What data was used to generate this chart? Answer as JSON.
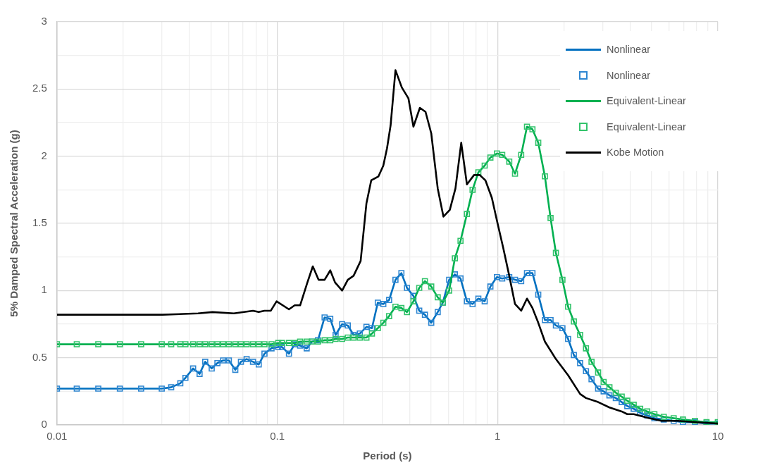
{
  "chart_data": {
    "type": "line",
    "xlabel": "Period (s)",
    "ylabel": "5% Damped Spectral Acceleration (g)",
    "log": "x",
    "grid": true,
    "legend": "top right",
    "x": [
      0.01,
      0.0123,
      0.0154,
      0.0193,
      0.0241,
      0.0299,
      0.033,
      0.0363,
      0.0383,
      0.0415,
      0.0444,
      0.0471,
      0.0504,
      0.0535,
      0.0568,
      0.0603,
      0.0645,
      0.0684,
      0.0726,
      0.0776,
      0.0824,
      0.0875,
      0.0942,
      0.101,
      0.105,
      0.113,
      0.12,
      0.127,
      0.136,
      0.144,
      0.153,
      0.164,
      0.174,
      0.184,
      0.197,
      0.209,
      0.222,
      0.237,
      0.254,
      0.269,
      0.286,
      0.303,
      0.322,
      0.344,
      0.366,
      0.388,
      0.415,
      0.441,
      0.468,
      0.5,
      0.535,
      0.564,
      0.603,
      0.64,
      0.679,
      0.726,
      0.77,
      0.818,
      0.874,
      0.928,
      0.993,
      1.05,
      1.13,
      1.2,
      1.28,
      1.36,
      1.44,
      1.53,
      1.64,
      1.74,
      1.84,
      1.97,
      2.09,
      2.22,
      2.37,
      2.52,
      2.67,
      2.86,
      3.03,
      3.22,
      3.44,
      3.66,
      3.88,
      4.15,
      4.44,
      4.78,
      5.15,
      5.68,
      6.3,
      6.94,
      7.87,
      8.88,
      10
    ],
    "xlim": [
      0.01,
      10
    ],
    "xticks": [
      0.01,
      {
        "value": 0.02,
        "label": null
      },
      {
        "value": 0.03,
        "label": null
      },
      {
        "value": 0.04,
        "label": null
      },
      {
        "value": 0.05,
        "label": null
      },
      {
        "value": 0.06,
        "label": null
      },
      {
        "value": 0.07,
        "label": null
      },
      {
        "value": 0.08,
        "label": null
      },
      {
        "value": 0.09,
        "label": null
      },
      0.1,
      {
        "value": 0.2,
        "label": null
      },
      {
        "value": 0.3,
        "label": null
      },
      {
        "value": 0.4,
        "label": null
      },
      {
        "value": 0.5,
        "label": null
      },
      {
        "value": 0.6,
        "label": null
      },
      {
        "value": 0.7,
        "label": null
      },
      {
        "value": 0.8,
        "label": null
      },
      {
        "value": 0.9,
        "label": null
      },
      1,
      {
        "value": 2,
        "label": null
      },
      {
        "value": 3,
        "label": null
      },
      {
        "value": 4,
        "label": null
      },
      {
        "value": 5,
        "label": null
      },
      {
        "value": 6,
        "label": null
      },
      {
        "value": 7,
        "label": null
      },
      {
        "value": 8,
        "label": null
      },
      {
        "value": 9,
        "label": null
      },
      10
    ],
    "ylim": [
      0,
      3
    ],
    "yticks": [
      0,
      {
        "value": 0.25,
        "label": null
      },
      0.5,
      {
        "value": 0.75,
        "label": null
      },
      1,
      {
        "value": 1.25,
        "label": null
      },
      1.5,
      {
        "value": 1.75,
        "label": null
      },
      2,
      {
        "value": 2.25,
        "label": null
      },
      2.5,
      {
        "value": 2.75,
        "label": null
      },
      3
    ],
    "series": [
      {
        "name": "Nonlinear",
        "type": "line",
        "marker": "none",
        "color": "#0070c0",
        "values": [
          0.27,
          0.27,
          0.27,
          0.27,
          0.27,
          0.27,
          0.28,
          0.31,
          0.35,
          0.42,
          0.38,
          0.47,
          0.42,
          0.46,
          0.48,
          0.48,
          0.41,
          0.47,
          0.49,
          0.47,
          0.45,
          0.53,
          0.57,
          0.58,
          0.58,
          0.53,
          0.6,
          0.59,
          0.57,
          0.62,
          0.63,
          0.8,
          0.79,
          0.67,
          0.75,
          0.74,
          0.67,
          0.68,
          0.73,
          0.72,
          0.91,
          0.9,
          0.93,
          1.08,
          1.13,
          1.02,
          0.96,
          0.85,
          0.82,
          0.76,
          0.84,
          0.91,
          1.08,
          1.12,
          1.09,
          0.92,
          0.9,
          0.94,
          0.92,
          1.03,
          1.1,
          1.09,
          1.1,
          1.08,
          1.07,
          1.13,
          1.13,
          0.97,
          0.78,
          0.78,
          0.74,
          0.72,
          0.64,
          0.52,
          0.46,
          0.4,
          0.34,
          0.27,
          0.25,
          0.22,
          0.2,
          0.17,
          0.14,
          0.12,
          0.09,
          0.07,
          0.05,
          0.04,
          0.03,
          0.02,
          0.02,
          0.01,
          0.01
        ]
      },
      {
        "name": "Nonlinear",
        "type": "scatter",
        "marker": "square",
        "color": "#2e86d1",
        "values": [
          0.27,
          0.27,
          0.27,
          0.27,
          0.27,
          0.27,
          0.28,
          0.31,
          0.35,
          0.42,
          0.38,
          0.47,
          0.42,
          0.46,
          0.48,
          0.48,
          0.41,
          0.47,
          0.49,
          0.47,
          0.45,
          0.53,
          0.57,
          0.58,
          0.58,
          0.53,
          0.6,
          0.59,
          0.57,
          0.62,
          0.63,
          0.8,
          0.79,
          0.67,
          0.75,
          0.74,
          0.67,
          0.68,
          0.73,
          0.72,
          0.91,
          0.9,
          0.93,
          1.08,
          1.13,
          1.02,
          0.96,
          0.85,
          0.82,
          0.76,
          0.84,
          0.91,
          1.08,
          1.12,
          1.09,
          0.92,
          0.9,
          0.94,
          0.92,
          1.03,
          1.1,
          1.09,
          1.1,
          1.08,
          1.07,
          1.13,
          1.13,
          0.97,
          0.78,
          0.78,
          0.74,
          0.72,
          0.64,
          0.52,
          0.46,
          0.4,
          0.34,
          0.27,
          0.25,
          0.22,
          0.2,
          0.17,
          0.14,
          0.12,
          0.09,
          0.07,
          0.05,
          0.04,
          0.03,
          0.02,
          0.02,
          0.01,
          0.01
        ]
      },
      {
        "name": "Equivalent-Linear",
        "type": "line",
        "marker": "none",
        "color": "#00b050",
        "values": [
          0.6,
          0.6,
          0.6,
          0.6,
          0.6,
          0.6,
          0.6,
          0.6,
          0.6,
          0.6,
          0.6,
          0.6,
          0.6,
          0.6,
          0.6,
          0.6,
          0.6,
          0.6,
          0.6,
          0.6,
          0.6,
          0.6,
          0.6,
          0.61,
          0.61,
          0.61,
          0.61,
          0.62,
          0.62,
          0.62,
          0.62,
          0.63,
          0.63,
          0.64,
          0.64,
          0.65,
          0.65,
          0.65,
          0.65,
          0.68,
          0.72,
          0.76,
          0.81,
          0.88,
          0.87,
          0.84,
          0.92,
          1.02,
          1.07,
          1.03,
          0.95,
          0.91,
          1.0,
          1.24,
          1.37,
          1.57,
          1.75,
          1.88,
          1.93,
          1.99,
          2.02,
          2.01,
          1.96,
          1.87,
          2.01,
          2.22,
          2.2,
          2.1,
          1.85,
          1.54,
          1.28,
          1.08,
          0.88,
          0.77,
          0.67,
          0.57,
          0.47,
          0.39,
          0.32,
          0.28,
          0.24,
          0.21,
          0.18,
          0.15,
          0.12,
          0.1,
          0.08,
          0.06,
          0.05,
          0.04,
          0.03,
          0.02,
          0.02
        ]
      },
      {
        "name": "Equivalent-Linear",
        "type": "scatter",
        "marker": "square",
        "color": "#33c36b",
        "values": [
          0.6,
          0.6,
          0.6,
          0.6,
          0.6,
          0.6,
          0.6,
          0.6,
          0.6,
          0.6,
          0.6,
          0.6,
          0.6,
          0.6,
          0.6,
          0.6,
          0.6,
          0.6,
          0.6,
          0.6,
          0.6,
          0.6,
          0.6,
          0.61,
          0.61,
          0.61,
          0.61,
          0.62,
          0.62,
          0.62,
          0.62,
          0.63,
          0.63,
          0.64,
          0.64,
          0.65,
          0.65,
          0.65,
          0.65,
          0.68,
          0.72,
          0.76,
          0.81,
          0.88,
          0.87,
          0.84,
          0.92,
          1.02,
          1.07,
          1.03,
          0.95,
          0.91,
          1.0,
          1.24,
          1.37,
          1.57,
          1.75,
          1.88,
          1.93,
          1.99,
          2.02,
          2.01,
          1.96,
          1.87,
          2.01,
          2.22,
          2.2,
          2.1,
          1.85,
          1.54,
          1.28,
          1.08,
          0.88,
          0.77,
          0.67,
          0.57,
          0.47,
          0.39,
          0.32,
          0.28,
          0.24,
          0.21,
          0.18,
          0.15,
          0.12,
          0.1,
          0.08,
          0.06,
          0.05,
          0.04,
          0.03,
          0.02,
          0.02
        ]
      },
      {
        "name": "Kobe Motion",
        "type": "line",
        "marker": "none",
        "color": "#000000",
        "x": [
          0.01,
          0.0301,
          0.0437,
          0.0508,
          0.0635,
          0.0776,
          0.0824,
          0.0875,
          0.0935,
          0.0993,
          0.113,
          0.12,
          0.127,
          0.137,
          0.145,
          0.154,
          0.164,
          0.174,
          0.183,
          0.197,
          0.209,
          0.222,
          0.239,
          0.254,
          0.267,
          0.288,
          0.303,
          0.315,
          0.327,
          0.344,
          0.368,
          0.394,
          0.415,
          0.444,
          0.471,
          0.5,
          0.535,
          0.568,
          0.607,
          0.644,
          0.684,
          0.726,
          0.782,
          0.83,
          0.881,
          0.942,
          1,
          1.06,
          1.13,
          1.2,
          1.28,
          1.36,
          1.44,
          1.53,
          1.64,
          1.84,
          2.09,
          2.37,
          2.52,
          2.86,
          3.22,
          3.66,
          3.88,
          4.15,
          4.89,
          5.55,
          6.59,
          8.05,
          10
        ],
        "values": [
          0.82,
          0.82,
          0.83,
          0.84,
          0.83,
          0.85,
          0.84,
          0.85,
          0.85,
          0.92,
          0.86,
          0.89,
          0.89,
          1.06,
          1.18,
          1.08,
          1.08,
          1.15,
          1.06,
          1.0,
          1.08,
          1.11,
          1.22,
          1.65,
          1.82,
          1.85,
          1.93,
          2.06,
          2.23,
          2.64,
          2.51,
          2.43,
          2.22,
          2.36,
          2.33,
          2.17,
          1.76,
          1.55,
          1.6,
          1.76,
          2.1,
          1.79,
          1.86,
          1.86,
          1.82,
          1.69,
          1.5,
          1.32,
          1.11,
          0.9,
          0.85,
          0.94,
          0.87,
          0.76,
          0.62,
          0.49,
          0.37,
          0.23,
          0.2,
          0.17,
          0.13,
          0.1,
          0.08,
          0.08,
          0.05,
          0.03,
          0.03,
          0.02,
          0.01
        ]
      }
    ]
  }
}
